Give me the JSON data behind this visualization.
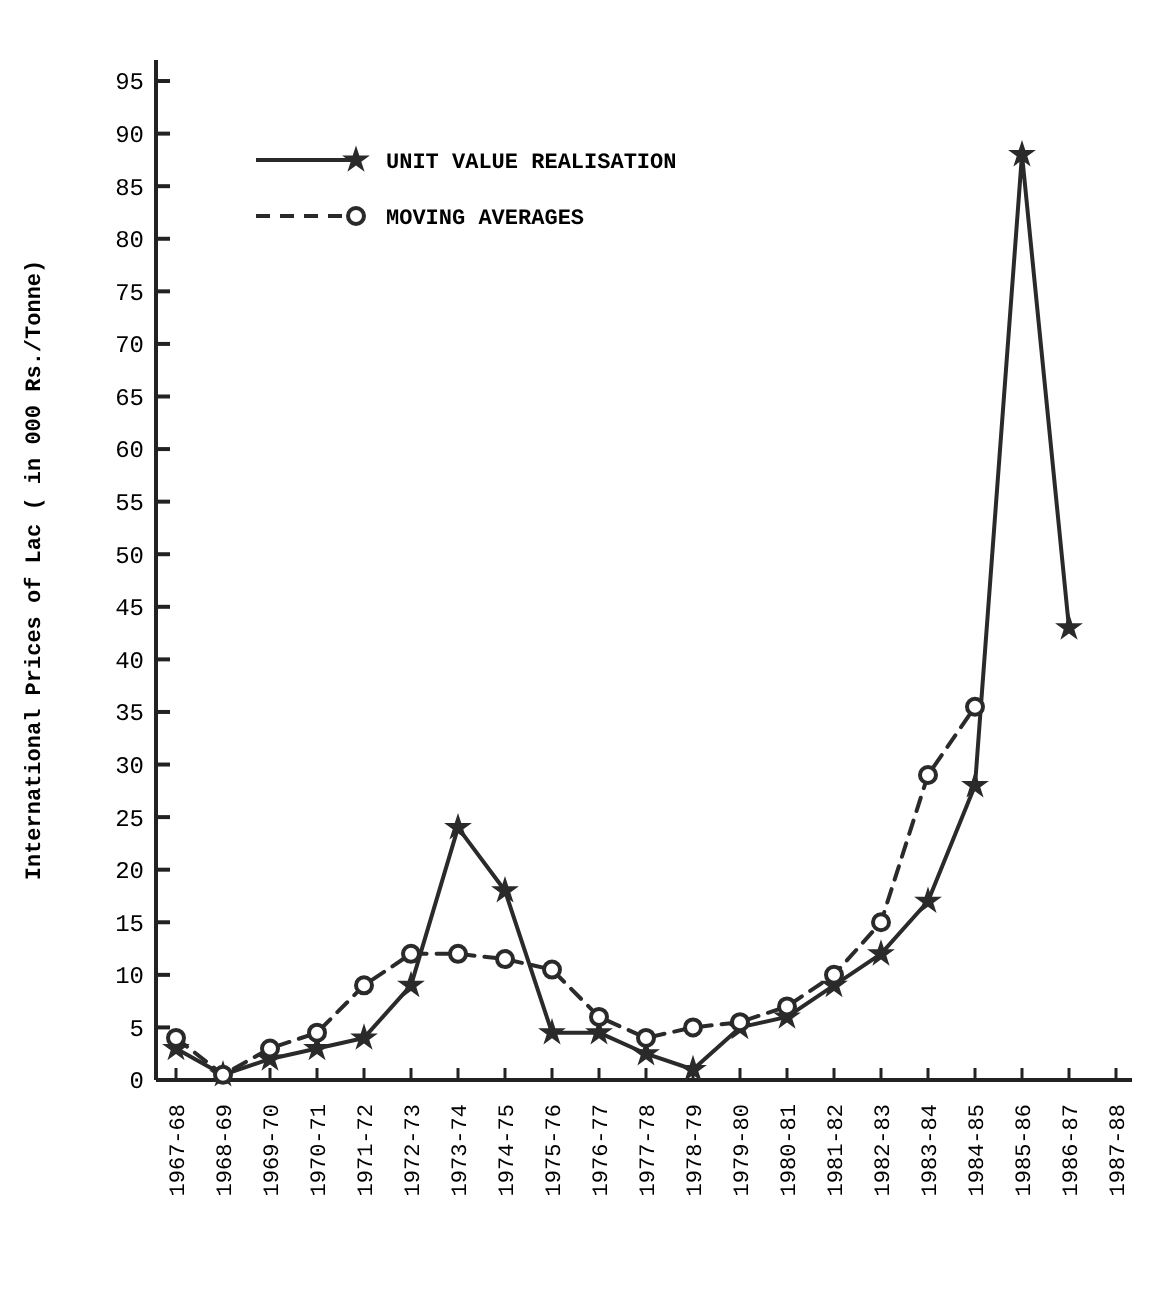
{
  "chart_data": {
    "type": "line",
    "ylabel": "International Prices of Lac ( in 000 Rs./Tonne)",
    "categories": [
      "1967-68",
      "1968-69",
      "1969-70",
      "1970-71",
      "1971-72",
      "1972-73",
      "1973-74",
      "1974-75",
      "1975-76",
      "1976-77",
      "1977-78",
      "1978-79",
      "1979-80",
      "1980-81",
      "1981-82",
      "1982-83",
      "1983-84",
      "1984-85",
      "1985-86",
      "1986-87",
      "1987-88"
    ],
    "series": [
      {
        "name": "UNIT VALUE REALISATION",
        "color": "#2a2a2a",
        "marker": "star",
        "line_style": "solid",
        "values": [
          3,
          0.5,
          2,
          3,
          4,
          9,
          24,
          18,
          4.5,
          4.5,
          2.5,
          1,
          5,
          6,
          9,
          12,
          17,
          28,
          88,
          43,
          null
        ]
      },
      {
        "name": "MOVING AVERAGES",
        "color": "#2a2a2a",
        "marker": "circle",
        "line_style": "dashed",
        "values": [
          4,
          0.5,
          3,
          4.5,
          9,
          12,
          12,
          11.5,
          10.5,
          6,
          4,
          5,
          5.5,
          7,
          10,
          15,
          29,
          35.5,
          null,
          null,
          null
        ]
      }
    ],
    "ylim": [
      0,
      97
    ],
    "yticks": [
      0,
      5,
      10,
      15,
      20,
      25,
      30,
      35,
      40,
      45,
      50,
      55,
      60,
      65,
      70,
      75,
      80,
      85,
      90,
      95
    ],
    "grid": false,
    "legend": "top left"
  }
}
